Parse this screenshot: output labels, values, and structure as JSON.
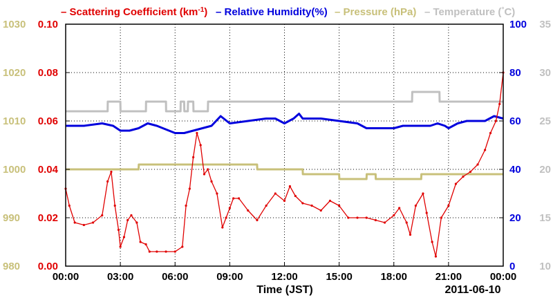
{
  "chart_data": {
    "type": "line",
    "date_label": "2011-06-10",
    "xlabel": "Time (JST)",
    "x_ticks": [
      "00:00",
      "03:00",
      "06:00",
      "09:00",
      "12:00",
      "15:00",
      "18:00",
      "21:00",
      "00:00"
    ],
    "x_range_hours": [
      0,
      24
    ],
    "grid": true,
    "legend_position": "top",
    "legend": {
      "scat_prefix": "– Scattering Coefficient (km",
      "scat_sup": "-1",
      "scat_suffix": ")",
      "rh": "– Relative Humidity(%)",
      "pres": "– Pressure (hPa)",
      "temp": "– Temperature (",
      "temp_deg": "°",
      "temp_unit": "C)"
    },
    "axes": {
      "pressure": {
        "ticks": [
          "980",
          "990",
          "1000",
          "1010",
          "1020",
          "1030"
        ],
        "range": [
          980,
          1030
        ],
        "color": "#c8c07a"
      },
      "scattering": {
        "ticks": [
          "0.00",
          "0.02",
          "0.04",
          "0.06",
          "0.08",
          "0.10"
        ],
        "range": [
          0,
          0.1
        ],
        "color": "#e00000"
      },
      "humidity": {
        "ticks": [
          "0",
          "20",
          "40",
          "60",
          "80",
          "100"
        ],
        "range": [
          0,
          100
        ],
        "color": "#0000dd"
      },
      "temperature": {
        "ticks": [
          "10",
          "15",
          "20",
          "25",
          "30",
          "35"
        ],
        "range": [
          10,
          35
        ],
        "color": "#c0c0c0"
      }
    },
    "series": [
      {
        "name": "Scattering Coefficient (km-1)",
        "color": "#e00000",
        "x": [
          0,
          0.2,
          0.5,
          1,
          1.5,
          2,
          2.3,
          2.5,
          2.7,
          2.9,
          3.0,
          3.2,
          3.4,
          3.6,
          3.9,
          4.1,
          4.4,
          4.6,
          5,
          5.5,
          6,
          6.4,
          6.6,
          6.8,
          7.0,
          7.2,
          7.4,
          7.6,
          7.8,
          8.0,
          8.3,
          8.6,
          8.8,
          9.0,
          9.2,
          9.5,
          10,
          10.5,
          11,
          11.5,
          12,
          12.3,
          12.6,
          13,
          13.5,
          14,
          14.5,
          15,
          15.5,
          16,
          16.5,
          17,
          17.5,
          18,
          18.3,
          18.7,
          18.9,
          19.2,
          19.6,
          19.8,
          20.1,
          20.3,
          20.6,
          21,
          21.4,
          21.8,
          22.2,
          22.6,
          23,
          23.3,
          23.6,
          23.8,
          24
        ],
        "values": [
          0.032,
          0.025,
          0.018,
          0.017,
          0.018,
          0.021,
          0.035,
          0.039,
          0.025,
          0.015,
          0.008,
          0.012,
          0.019,
          0.021,
          0.018,
          0.01,
          0.009,
          0.006,
          0.006,
          0.006,
          0.006,
          0.008,
          0.025,
          0.032,
          0.045,
          0.055,
          0.05,
          0.038,
          0.04,
          0.035,
          0.03,
          0.016,
          0.02,
          0.024,
          0.028,
          0.028,
          0.023,
          0.019,
          0.025,
          0.03,
          0.027,
          0.033,
          0.029,
          0.026,
          0.025,
          0.023,
          0.027,
          0.025,
          0.02,
          0.02,
          0.02,
          0.019,
          0.018,
          0.021,
          0.024,
          0.018,
          0.013,
          0.025,
          0.03,
          0.022,
          0.01,
          0.004,
          0.02,
          0.025,
          0.034,
          0.037,
          0.039,
          0.042,
          0.048,
          0.055,
          0.06,
          0.067,
          0.08
        ]
      },
      {
        "name": "Relative Humidity(%)",
        "color": "#0000dd",
        "x": [
          0,
          1,
          2,
          2.6,
          3,
          3.5,
          4,
          4.5,
          5,
          6,
          6.5,
          7,
          7.5,
          8,
          8.5,
          9,
          10,
          11,
          11.5,
          12,
          12.5,
          12.8,
          13,
          13.5,
          14,
          15,
          16,
          16.5,
          17,
          17.5,
          18,
          18.5,
          19,
          20,
          20.4,
          20.8,
          21,
          21.5,
          22,
          22.5,
          23,
          23.5,
          24
        ],
        "values": [
          58,
          58,
          59,
          58,
          56,
          56,
          57,
          59,
          58,
          55,
          55,
          56,
          57,
          58,
          62,
          59,
          60,
          61,
          61,
          59,
          61,
          63,
          61,
          61,
          61,
          60,
          59,
          57,
          57,
          57,
          57,
          58,
          58,
          58,
          59,
          58,
          57,
          59,
          60,
          60,
          60,
          62,
          61
        ]
      },
      {
        "name": "Pressure (hPa)",
        "color": "#c8c07a",
        "x": [
          0,
          4,
          4.01,
          10.5,
          10.51,
          13,
          13.01,
          15,
          15.01,
          16.5,
          16.51,
          17,
          17.01,
          19.5,
          19.51,
          24
        ],
        "values": [
          1000,
          1000,
          1001,
          1001,
          1000,
          1000,
          999,
          999,
          998,
          998,
          999,
          999,
          998,
          998,
          999,
          999
        ]
      },
      {
        "name": "Temperature (°C)",
        "color": "#c0c0c0",
        "x": [
          0,
          2.3,
          2.31,
          3.0,
          3.01,
          4.4,
          4.41,
          5.5,
          5.51,
          6.3,
          6.31,
          6.5,
          6.51,
          6.7,
          6.71,
          7.0,
          7.01,
          7.8,
          7.81,
          8.3,
          8.31,
          12.8,
          12.81,
          19,
          19.01,
          20.5,
          20.51,
          24
        ],
        "values": [
          26,
          26,
          27,
          27,
          26,
          26,
          27,
          27,
          26,
          26,
          27,
          27,
          26,
          26,
          27,
          27,
          26,
          26,
          27,
          27,
          27,
          27,
          27,
          27,
          28,
          28,
          27,
          27
        ]
      }
    ]
  }
}
